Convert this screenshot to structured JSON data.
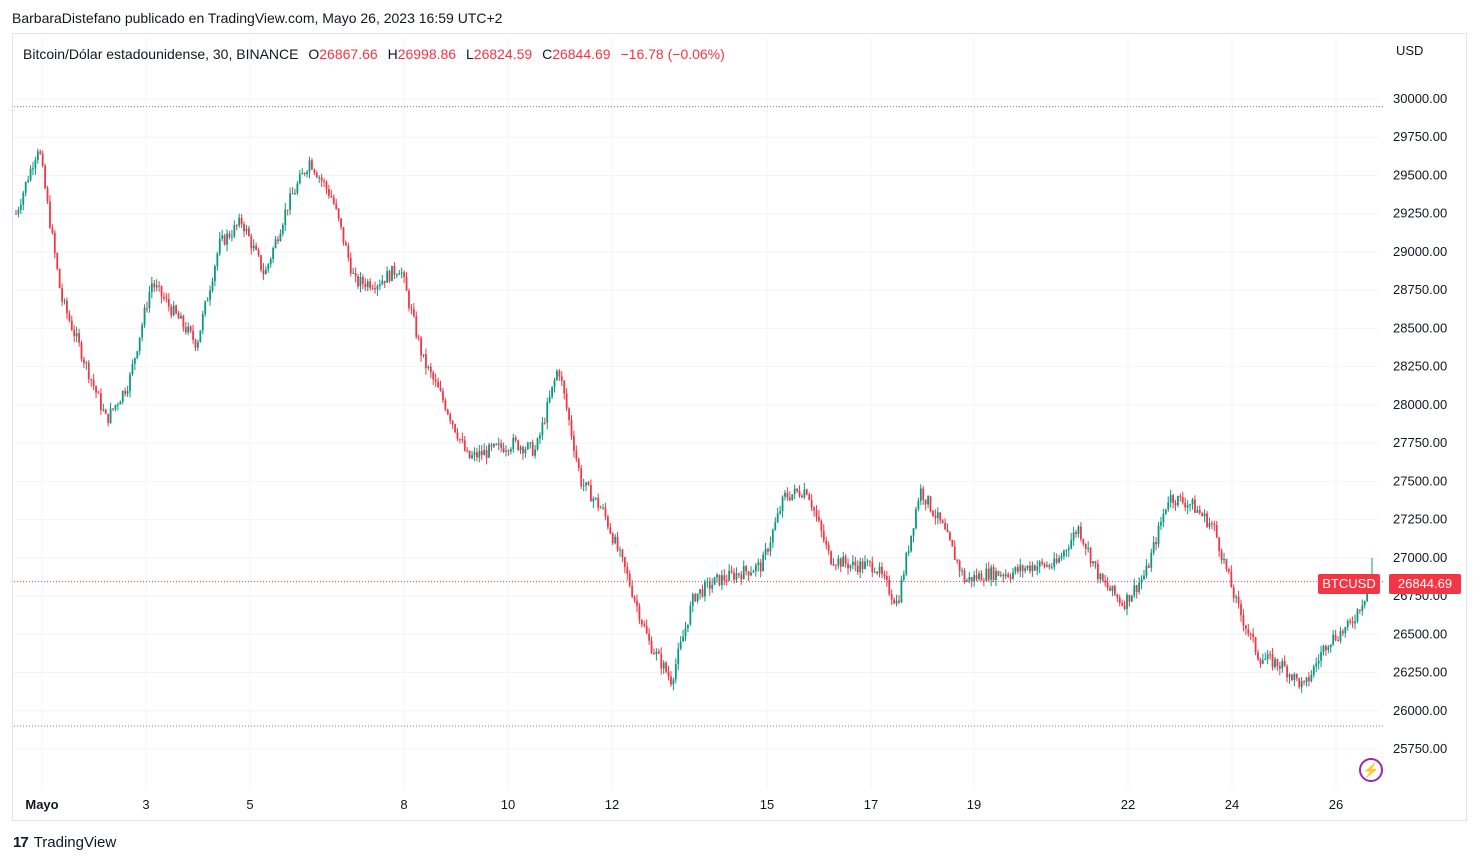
{
  "header": {
    "publisher_line": "BarbaraDistefano publicado en TradingView.com, Mayo 26, 2023 16:59 UTC+2"
  },
  "legend": {
    "symbol": "Bitcoin/Dólar estadounidense, 30, BINANCE",
    "open_label": "O",
    "open": "26867.66",
    "high_label": "H",
    "high": "26998.86",
    "low_label": "L",
    "low": "26824.59",
    "close_label": "C",
    "close": "26844.69",
    "change": "−16.78 (−0.06%)"
  },
  "price_axis": {
    "currency": "USD"
  },
  "tags": {
    "symbol": "BTCUSD",
    "last_price": "26844.69"
  },
  "footer": {
    "logo": "17",
    "brand": "TradingView"
  },
  "colors": {
    "up": "#089981",
    "down": "#f23645",
    "grid": "#f0f3fa",
    "text": "#131722"
  },
  "chart_data": {
    "type": "candlestick",
    "interval": "30",
    "x_tick_labels": [
      "Mayo",
      "3",
      "5",
      "8",
      "10",
      "12",
      "15",
      "17",
      "19",
      "22",
      "24",
      "26"
    ],
    "y_tick_labels": [
      "25750.00",
      "26000.00",
      "26250.00",
      "26500.00",
      "26750.00",
      "27000.00",
      "27250.00",
      "27500.00",
      "27750.00",
      "28000.00",
      "28250.00",
      "28500.00",
      "28750.00",
      "29000.00",
      "29250.00",
      "29500.00",
      "29750.00",
      "30000.00"
    ],
    "ylim": [
      25600,
      30300
    ],
    "grid": true,
    "horizontal_lines": [
      {
        "value": 29950,
        "style": "dotted"
      },
      {
        "value": 25900,
        "style": "dotted"
      },
      {
        "value": 26844.69,
        "style": "dotted-red"
      }
    ],
    "approx_close_path": [
      [
        "Mayo",
        29250
      ],
      [
        "Mayo",
        29700
      ],
      [
        "2",
        28700
      ],
      [
        "2",
        28300
      ],
      [
        "2",
        27900
      ],
      [
        "3",
        28150
      ],
      [
        "3",
        28800
      ],
      [
        "4",
        28600
      ],
      [
        "4",
        28400
      ],
      [
        "5",
        29050
      ],
      [
        "5",
        29200
      ],
      [
        "5",
        28850
      ],
      [
        "6",
        29300
      ],
      [
        "6",
        29600
      ],
      [
        "6",
        29350
      ],
      [
        "7",
        28800
      ],
      [
        "7",
        28800
      ],
      [
        "8",
        28900
      ],
      [
        "8",
        28300
      ],
      [
        "9",
        28000
      ],
      [
        "9",
        27650
      ],
      [
        "9",
        27700
      ],
      [
        "10",
        27750
      ],
      [
        "10",
        27700
      ],
      [
        "11",
        28250
      ],
      [
        "11",
        27500
      ],
      [
        "11",
        27300
      ],
      [
        "12",
        26900
      ],
      [
        "12",
        26450
      ],
      [
        "13",
        26200
      ],
      [
        "13",
        26750
      ],
      [
        "14",
        26850
      ],
      [
        "14",
        26900
      ],
      [
        "15",
        26950
      ],
      [
        "15",
        27400
      ],
      [
        "16",
        27450
      ],
      [
        "16",
        27000
      ],
      [
        "17",
        26950
      ],
      [
        "17",
        26950
      ],
      [
        "18",
        26700
      ],
      [
        "18",
        27450
      ],
      [
        "18",
        27200
      ],
      [
        "19",
        26850
      ],
      [
        "19",
        26900
      ],
      [
        "20",
        26900
      ],
      [
        "20",
        26950
      ],
      [
        "21",
        26950
      ],
      [
        "21",
        27200
      ],
      [
        "22",
        26850
      ],
      [
        "22",
        26700
      ],
      [
        "23",
        26900
      ],
      [
        "23",
        27400
      ],
      [
        "23",
        27350
      ],
      [
        "24",
        27200
      ],
      [
        "24",
        26700
      ],
      [
        "25",
        26350
      ],
      [
        "25",
        26300
      ],
      [
        "25",
        26150
      ],
      [
        "26",
        26450
      ],
      [
        "26",
        26550
      ],
      [
        "26",
        26844.69
      ]
    ]
  }
}
